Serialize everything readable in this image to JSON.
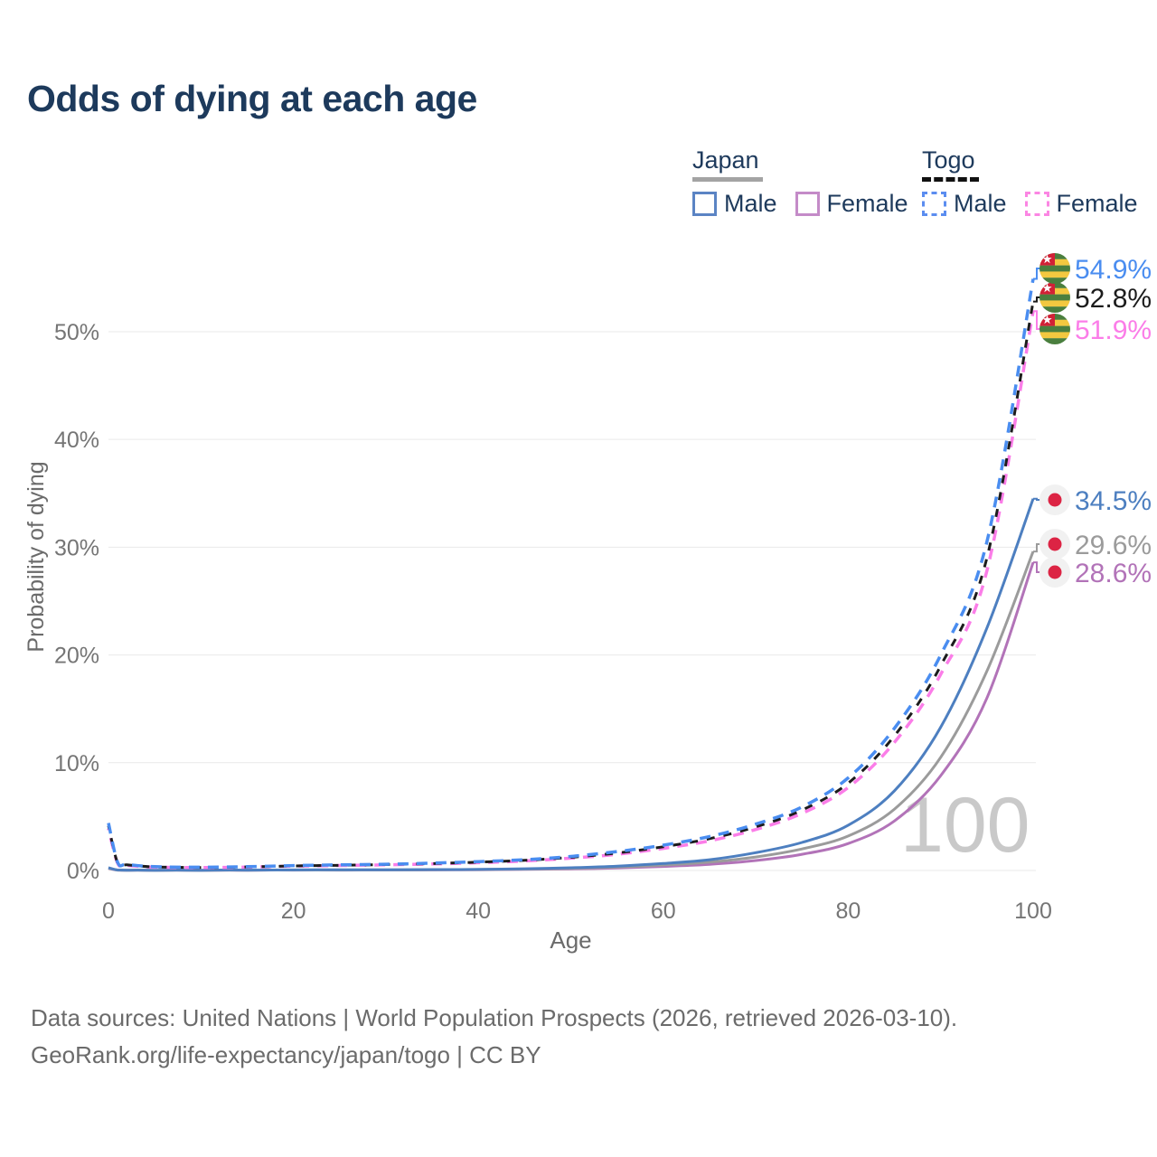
{
  "title": "Odds of dying at each age",
  "watermark": "100",
  "legend": {
    "groups": [
      {
        "name": "Japan",
        "underline_style": "solid",
        "underline_color": "#a3a3a3",
        "items": [
          {
            "label": "Male",
            "color": "#5b84c4",
            "dash": false
          },
          {
            "label": "Female",
            "color": "#c48bc8",
            "dash": false
          }
        ]
      },
      {
        "name": "Togo",
        "underline_style": "dashed",
        "underline_color": "#111111",
        "items": [
          {
            "label": "Male",
            "color": "#5b8df0",
            "dash": true
          },
          {
            "label": "Female",
            "color": "#fb86e3",
            "dash": true
          }
        ]
      }
    ]
  },
  "footer": {
    "line1": "Data sources: United Nations | World Population Prospects (2026, retrieved 2026-03-10).",
    "line2": "GeoRank.org/life-expectancy/japan/togo | CC BY"
  },
  "icons": {
    "togo_flag": {
      "green": "#4a7f3e",
      "yellow": "#f3c840",
      "red": "#d12136",
      "star": "#ffffff"
    },
    "japan_flag": {
      "bg": "#f1f1f1",
      "sun": "#dc2444"
    }
  },
  "chart_data": {
    "type": "line",
    "title": "Odds of dying at each age",
    "xlabel": "Age",
    "ylabel": "Probability of dying",
    "x_ticks": [
      0,
      20,
      40,
      60,
      80,
      100
    ],
    "y_ticks_pct": [
      0,
      10,
      20,
      30,
      40,
      50
    ],
    "xlim": [
      0,
      100
    ],
    "ylim_pct": [
      0,
      57
    ],
    "grid": "horizontal",
    "ages": [
      0,
      1,
      2,
      5,
      10,
      15,
      20,
      25,
      30,
      35,
      40,
      45,
      50,
      55,
      60,
      65,
      70,
      75,
      80,
      85,
      90,
      95,
      100
    ],
    "series": [
      {
        "id": "japan-female",
        "name": "Japan Female",
        "color": "#b273b8",
        "dash": false,
        "width": 3,
        "values": [
          0.2,
          0.03,
          0.015,
          0.008,
          0.008,
          0.018,
          0.03,
          0.035,
          0.04,
          0.05,
          0.07,
          0.1,
          0.15,
          0.23,
          0.37,
          0.57,
          0.92,
          1.5,
          2.5,
          4.6,
          8.8,
          16.0,
          28.6
        ],
        "end_label": {
          "text": "28.6%",
          "flag": "japan"
        }
      },
      {
        "id": "japan-combined",
        "name": "Japan (combined)",
        "color": "#9b9b9b",
        "dash": false,
        "width": 3,
        "values": [
          0.22,
          0.035,
          0.018,
          0.009,
          0.009,
          0.022,
          0.04,
          0.045,
          0.05,
          0.065,
          0.085,
          0.13,
          0.2,
          0.31,
          0.5,
          0.77,
          1.25,
          2.0,
          3.2,
          5.7,
          10.5,
          18.5,
          29.6
        ],
        "end_label": {
          "text": "29.6%",
          "flag": "japan"
        }
      },
      {
        "id": "japan-male",
        "name": "Japan Male",
        "color": "#4d7fc0",
        "dash": false,
        "width": 3,
        "values": [
          0.25,
          0.04,
          0.02,
          0.01,
          0.01,
          0.03,
          0.05,
          0.06,
          0.06,
          0.08,
          0.1,
          0.16,
          0.25,
          0.4,
          0.65,
          1.0,
          1.65,
          2.6,
          4.2,
          7.4,
          13.3,
          22.5,
          34.5
        ],
        "end_label": {
          "text": "34.5%",
          "flag": "japan"
        }
      },
      {
        "id": "togo-female",
        "name": "Togo Female",
        "color": "#fb7de8",
        "dash": true,
        "dash_pattern": "12 9",
        "dash_offset": 10,
        "width": 3.5,
        "values": [
          3.9,
          0.66,
          0.48,
          0.31,
          0.27,
          0.31,
          0.4,
          0.46,
          0.52,
          0.6,
          0.72,
          0.88,
          1.14,
          1.5,
          2.05,
          2.75,
          3.8,
          5.3,
          7.7,
          11.9,
          18.2,
          27.8,
          51.9
        ],
        "end_label": {
          "text": "51.9%",
          "flag": "togo"
        }
      },
      {
        "id": "togo-combined",
        "name": "Togo (combined)",
        "color": "#1c1c1c",
        "dash": true,
        "dash_pattern": "9 10",
        "dash_offset": 5,
        "width": 3,
        "values": [
          4.15,
          0.7,
          0.52,
          0.33,
          0.28,
          0.33,
          0.42,
          0.48,
          0.55,
          0.64,
          0.77,
          0.94,
          1.22,
          1.62,
          2.2,
          2.95,
          4.05,
          5.6,
          8.1,
          12.5,
          19.0,
          29.0,
          52.8
        ],
        "end_label": {
          "text": "52.8%",
          "flag": "togo"
        }
      },
      {
        "id": "togo-male",
        "name": "Togo Male",
        "color": "#4a8df0",
        "dash": true,
        "dash_pattern": "12 9",
        "dash_offset": 0,
        "width": 3.5,
        "values": [
          4.4,
          0.75,
          0.55,
          0.35,
          0.3,
          0.35,
          0.45,
          0.52,
          0.58,
          0.68,
          0.82,
          1.0,
          1.3,
          1.75,
          2.35,
          3.15,
          4.3,
          5.9,
          8.6,
          13.2,
          20.0,
          30.5,
          54.9
        ],
        "end_label": {
          "text": "54.9%",
          "flag": "togo"
        }
      }
    ]
  }
}
